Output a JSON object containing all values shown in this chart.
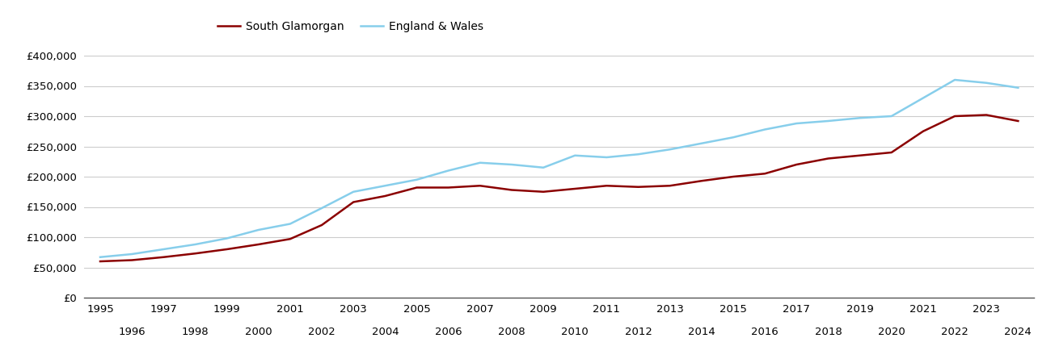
{
  "south_glamorgan": {
    "years": [
      1995,
      1996,
      1997,
      1998,
      1999,
      2000,
      2001,
      2002,
      2003,
      2004,
      2005,
      2006,
      2007,
      2008,
      2009,
      2010,
      2011,
      2012,
      2013,
      2014,
      2015,
      2016,
      2017,
      2018,
      2019,
      2020,
      2021,
      2022,
      2023,
      2024
    ],
    "values": [
      60000,
      62000,
      67000,
      73000,
      80000,
      88000,
      97000,
      120000,
      158000,
      168000,
      182000,
      182000,
      185000,
      178000,
      175000,
      180000,
      185000,
      183000,
      185000,
      193000,
      200000,
      205000,
      220000,
      230000,
      235000,
      240000,
      275000,
      300000,
      302000,
      292000
    ]
  },
  "england_wales": {
    "years": [
      1995,
      1996,
      1997,
      1998,
      1999,
      2000,
      2001,
      2002,
      2003,
      2004,
      2005,
      2006,
      2007,
      2008,
      2009,
      2010,
      2011,
      2012,
      2013,
      2014,
      2015,
      2016,
      2017,
      2018,
      2019,
      2020,
      2021,
      2022,
      2023,
      2024
    ],
    "values": [
      67000,
      72000,
      80000,
      88000,
      98000,
      112000,
      122000,
      148000,
      175000,
      185000,
      195000,
      210000,
      223000,
      220000,
      215000,
      235000,
      232000,
      237000,
      245000,
      255000,
      265000,
      278000,
      288000,
      292000,
      297000,
      300000,
      330000,
      360000,
      355000,
      347000
    ]
  },
  "south_glamorgan_color": "#8B0000",
  "england_wales_color": "#87CEEB",
  "background_color": "#ffffff",
  "grid_color": "#cccccc",
  "ylim": [
    0,
    420000
  ],
  "yticks": [
    0,
    50000,
    100000,
    150000,
    200000,
    250000,
    300000,
    350000,
    400000
  ],
  "xlabel_odd": [
    1995,
    1997,
    1999,
    2001,
    2003,
    2005,
    2007,
    2009,
    2011,
    2013,
    2015,
    2017,
    2019,
    2021,
    2023
  ],
  "xlabel_even": [
    1996,
    1998,
    2000,
    2002,
    2004,
    2006,
    2008,
    2010,
    2012,
    2014,
    2016,
    2018,
    2020,
    2022,
    2024
  ],
  "legend_south": "South Glamorgan",
  "legend_ew": "England & Wales",
  "line_width": 1.8
}
